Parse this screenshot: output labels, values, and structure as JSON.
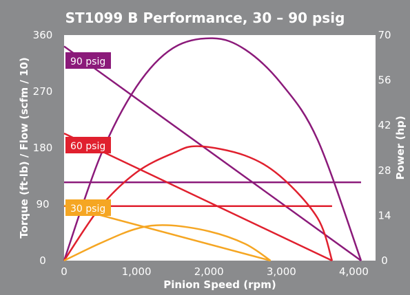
{
  "chart_data": {
    "type": "line",
    "title": "ST1099 B Performance, 30 – 90 psig",
    "xlabel": "Pinion Speed (rpm)",
    "ylabel_left": "Torque (ft-lb) / Flow (scfm / 10)",
    "ylabel_right": "Power (hp)",
    "x_range": [
      0,
      4300
    ],
    "y_left_range": [
      0,
      360
    ],
    "y_right_range": [
      0,
      70
    ],
    "x_ticks": [
      0,
      1000,
      2000,
      3000,
      4000
    ],
    "x_tick_labels": [
      "0",
      "1,000",
      "2,000",
      "3,000",
      "4,000"
    ],
    "y_left_ticks": [
      0,
      90,
      180,
      270,
      360
    ],
    "y_left_tick_labels": [
      "0",
      "90",
      "180",
      "270",
      "360"
    ],
    "y_right_ticks": [
      0,
      14,
      28,
      42,
      56,
      70
    ],
    "y_right_tick_labels": [
      "0",
      "14",
      "28",
      "42",
      "56",
      "70"
    ],
    "grid": false,
    "series": [
      {
        "name": "90 psig",
        "color": "#8b1a7a",
        "torque": {
          "x": [
            0,
            4100
          ],
          "y": [
            342,
            0
          ]
        },
        "flow": {
          "x": [
            0,
            4100
          ],
          "y": [
            125,
            125
          ]
        },
        "power": {
          "x": [
            0,
            500,
            1000,
            1500,
            2050,
            2500,
            3000,
            3500,
            4100
          ],
          "y_hp": [
            0,
            32.4,
            54.0,
            65.9,
            69.0,
            65.5,
            54.9,
            37.5,
            0
          ]
        }
      },
      {
        "name": "60 psig",
        "color": "#e0202e",
        "torque": {
          "x": [
            0,
            3700
          ],
          "y": [
            203,
            0
          ]
        },
        "flow": {
          "x": [
            0,
            3700
          ],
          "y": [
            87,
            87
          ]
        },
        "power": {
          "x": [
            0,
            500,
            1000,
            1500,
            1850,
            2500,
            3000,
            3500,
            3700
          ],
          "y_hp": [
            0,
            16.6,
            27.4,
            33.3,
            35.5,
            32.6,
            25.9,
            13.2,
            0
          ]
        }
      },
      {
        "name": "30 psig",
        "color": "#f5a623",
        "torque": {
          "x": [
            0,
            2850
          ],
          "y": [
            88,
            0
          ]
        },
        "flow": null,
        "power": {
          "x": [
            0,
            500,
            1000,
            1425,
            2000,
            2500,
            2850
          ],
          "y_hp": [
            0,
            5.4,
            9.9,
            11.0,
            9.1,
            5.2,
            0
          ]
        }
      }
    ]
  }
}
